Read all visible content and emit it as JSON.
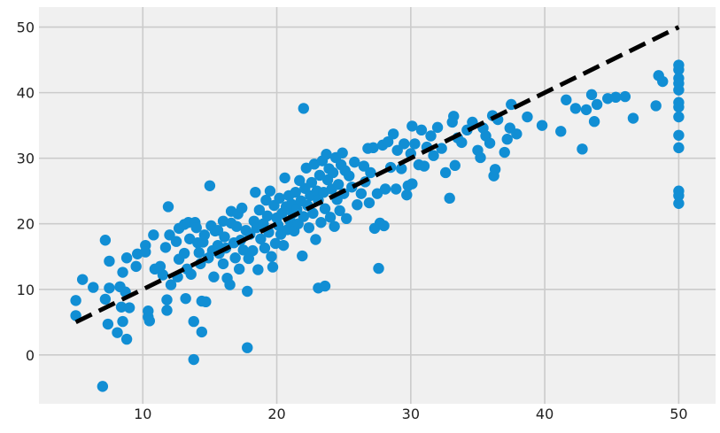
{
  "chart_data": {
    "type": "scatter",
    "title": "",
    "xlabel": "",
    "ylabel": "",
    "xlim": [
      2.25,
      52.75
    ],
    "ylim": [
      -7.45,
      53.05
    ],
    "xticks": [
      10,
      20,
      30,
      40,
      50
    ],
    "yticks": [
      0,
      10,
      20,
      30,
      40,
      50
    ],
    "xtick_labels": [
      "10",
      "20",
      "30",
      "40",
      "50"
    ],
    "ytick_labels": [
      "0",
      "10",
      "20",
      "30",
      "40",
      "50"
    ],
    "grid": true,
    "style": "fivethirtyeight",
    "colors": {
      "points": "#118ed4",
      "line": "#000000",
      "background": "#f0f0f0",
      "grid": "#cbcbcb"
    },
    "reference_line": {
      "x": [
        5,
        50
      ],
      "y": [
        5,
        50
      ],
      "style": "dashed"
    },
    "series": [
      {
        "points": [
          [
            5.0,
            8.3
          ],
          [
            5.0,
            6.0
          ],
          [
            5.5,
            11.5
          ],
          [
            6.3,
            10.3
          ],
          [
            7.0,
            -4.8
          ],
          [
            7.2,
            17.5
          ],
          [
            7.2,
            8.5
          ],
          [
            7.5,
            14.3
          ],
          [
            7.5,
            10.2
          ],
          [
            7.4,
            4.7
          ],
          [
            8.1,
            3.4
          ],
          [
            8.3,
            10.4
          ],
          [
            8.4,
            7.3
          ],
          [
            8.5,
            12.6
          ],
          [
            8.5,
            5.1
          ],
          [
            8.7,
            9.6
          ],
          [
            8.8,
            14.8
          ],
          [
            8.8,
            2.4
          ],
          [
            9.0,
            7.2
          ],
          [
            9.5,
            13.5
          ],
          [
            9.6,
            15.4
          ],
          [
            10.2,
            16.7
          ],
          [
            10.2,
            15.7
          ],
          [
            10.4,
            5.8
          ],
          [
            10.4,
            6.7
          ],
          [
            10.5,
            5.2
          ],
          [
            10.8,
            18.3
          ],
          [
            10.9,
            13.1
          ],
          [
            11.3,
            13.5
          ],
          [
            11.5,
            12.2
          ],
          [
            11.7,
            16.4
          ],
          [
            11.8,
            8.4
          ],
          [
            11.8,
            6.8
          ],
          [
            11.9,
            22.6
          ],
          [
            12.0,
            18.3
          ],
          [
            12.1,
            10.7
          ],
          [
            12.5,
            17.3
          ],
          [
            12.6,
            11.9
          ],
          [
            12.7,
            19.3
          ],
          [
            12.7,
            14.6
          ],
          [
            13.1,
            15.5
          ],
          [
            13.1,
            19.9
          ],
          [
            13.2,
            8.6
          ],
          [
            13.3,
            13.1
          ],
          [
            13.4,
            20.2
          ],
          [
            13.5,
            17.7
          ],
          [
            13.6,
            12.3
          ],
          [
            13.8,
            5.1
          ],
          [
            13.8,
            -0.7
          ],
          [
            13.9,
            20.2
          ],
          [
            14.0,
            19.4
          ],
          [
            14.1,
            17.1
          ],
          [
            14.2,
            15.6
          ],
          [
            14.3,
            13.9
          ],
          [
            14.4,
            3.5
          ],
          [
            14.4,
            8.2
          ],
          [
            14.5,
            17.2
          ],
          [
            14.6,
            18.3
          ],
          [
            14.7,
            8.1
          ],
          [
            14.9,
            14.8
          ],
          [
            15.0,
            25.8
          ],
          [
            15.1,
            19.7
          ],
          [
            15.2,
            15.9
          ],
          [
            15.3,
            11.9
          ],
          [
            15.4,
            18.9
          ],
          [
            15.6,
            16.7
          ],
          [
            15.6,
            19.0
          ],
          [
            15.7,
            15.5
          ],
          [
            16.0,
            20.4
          ],
          [
            16.0,
            13.9
          ],
          [
            16.1,
            18.0
          ],
          [
            16.2,
            16.3
          ],
          [
            16.3,
            11.7
          ],
          [
            16.5,
            10.7
          ],
          [
            16.6,
            20.1
          ],
          [
            16.6,
            21.9
          ],
          [
            16.8,
            17.1
          ],
          [
            16.9,
            14.8
          ],
          [
            17.0,
            19.6
          ],
          [
            17.1,
            21.5
          ],
          [
            17.2,
            13.1
          ],
          [
            17.3,
            17.5
          ],
          [
            17.4,
            22.4
          ],
          [
            17.5,
            16.0
          ],
          [
            17.7,
            19.0
          ],
          [
            17.8,
            9.7
          ],
          [
            17.8,
            1.1
          ],
          [
            17.9,
            14.7
          ],
          [
            18.0,
            18.4
          ],
          [
            18.2,
            15.9
          ],
          [
            18.3,
            20.4
          ],
          [
            18.4,
            24.8
          ],
          [
            18.5,
            19.4
          ],
          [
            18.6,
            13.0
          ],
          [
            18.7,
            22.1
          ],
          [
            18.8,
            17.7
          ],
          [
            19.0,
            20.0
          ],
          [
            19.1,
            16.3
          ],
          [
            19.2,
            23.6
          ],
          [
            19.3,
            21.2
          ],
          [
            19.4,
            18.7
          ],
          [
            19.5,
            25.0
          ],
          [
            19.6,
            15.0
          ],
          [
            19.7,
            13.4
          ],
          [
            19.8,
            22.8
          ],
          [
            19.9,
            17.0
          ],
          [
            20.0,
            20.9
          ],
          [
            20.1,
            19.8
          ],
          [
            20.2,
            23.9
          ],
          [
            20.3,
            18.4
          ],
          [
            20.4,
            21.6
          ],
          [
            20.5,
            16.7
          ],
          [
            20.6,
            27.0
          ],
          [
            20.7,
            22.6
          ],
          [
            20.8,
            19.1
          ],
          [
            20.9,
            24.3
          ],
          [
            21.0,
            20.4
          ],
          [
            21.1,
            23.0
          ],
          [
            21.2,
            21.6
          ],
          [
            21.3,
            18.9
          ],
          [
            21.4,
            24.8
          ],
          [
            21.5,
            22.2
          ],
          [
            21.6,
            20.0
          ],
          [
            21.7,
            26.6
          ],
          [
            21.8,
            23.5
          ],
          [
            21.9,
            15.1
          ],
          [
            22.0,
            37.6
          ],
          [
            22.0,
            21.1
          ],
          [
            22.1,
            25.4
          ],
          [
            22.2,
            28.5
          ],
          [
            22.3,
            22.8
          ],
          [
            22.4,
            19.4
          ],
          [
            22.5,
            24.3
          ],
          [
            22.6,
            26.3
          ],
          [
            22.7,
            21.6
          ],
          [
            22.8,
            29.1
          ],
          [
            22.9,
            17.6
          ],
          [
            23.0,
            25.0
          ],
          [
            23.1,
            10.2
          ],
          [
            23.1,
            23.6
          ],
          [
            23.2,
            27.4
          ],
          [
            23.3,
            20.2
          ],
          [
            23.4,
            29.6
          ],
          [
            23.5,
            24.8
          ],
          [
            23.6,
            10.5
          ],
          [
            23.6,
            22.3
          ],
          [
            23.7,
            30.6
          ],
          [
            23.8,
            26.7
          ],
          [
            23.9,
            28.4
          ],
          [
            24.0,
            21.0
          ],
          [
            24.1,
            25.3
          ],
          [
            24.2,
            27.8
          ],
          [
            24.3,
            19.6
          ],
          [
            24.4,
            30.1
          ],
          [
            24.5,
            23.7
          ],
          [
            24.6,
            26.0
          ],
          [
            24.7,
            22.0
          ],
          [
            24.8,
            29.0
          ],
          [
            24.9,
            30.8
          ],
          [
            25.0,
            24.6
          ],
          [
            25.1,
            28.1
          ],
          [
            25.2,
            20.8
          ],
          [
            25.4,
            27.3
          ],
          [
            25.6,
            25.6
          ],
          [
            25.8,
            29.4
          ],
          [
            26.0,
            22.9
          ],
          [
            26.3,
            24.6
          ],
          [
            26.5,
            28.8
          ],
          [
            26.6,
            26.4
          ],
          [
            26.8,
            31.5
          ],
          [
            26.9,
            23.2
          ],
          [
            27.0,
            27.8
          ],
          [
            27.2,
            31.6
          ],
          [
            27.3,
            19.3
          ],
          [
            27.5,
            24.6
          ],
          [
            27.6,
            13.2
          ],
          [
            27.7,
            20.1
          ],
          [
            27.9,
            32.0
          ],
          [
            28.0,
            19.7
          ],
          [
            28.1,
            25.3
          ],
          [
            28.3,
            32.5
          ],
          [
            28.5,
            28.6
          ],
          [
            28.7,
            33.7
          ],
          [
            28.9,
            25.3
          ],
          [
            29.0,
            31.2
          ],
          [
            29.3,
            28.4
          ],
          [
            29.5,
            32.2
          ],
          [
            29.7,
            24.4
          ],
          [
            29.8,
            25.8
          ],
          [
            30.0,
            30.7
          ],
          [
            30.1,
            26.1
          ],
          [
            30.1,
            34.9
          ],
          [
            30.3,
            32.2
          ],
          [
            30.6,
            29.0
          ],
          [
            30.8,
            34.3
          ],
          [
            31.0,
            28.8
          ],
          [
            31.2,
            31.7
          ],
          [
            31.5,
            33.4
          ],
          [
            31.7,
            30.4
          ],
          [
            32.0,
            34.7
          ],
          [
            32.3,
            31.5
          ],
          [
            32.6,
            27.8
          ],
          [
            32.9,
            23.9
          ],
          [
            33.1,
            35.5
          ],
          [
            33.2,
            36.4
          ],
          [
            33.3,
            28.9
          ],
          [
            33.5,
            33.1
          ],
          [
            33.8,
            32.4
          ],
          [
            34.2,
            34.3
          ],
          [
            34.6,
            35.5
          ],
          [
            35.0,
            31.2
          ],
          [
            35.2,
            30.1
          ],
          [
            35.4,
            34.6
          ],
          [
            35.6,
            33.4
          ],
          [
            35.9,
            32.3
          ],
          [
            36.1,
            36.5
          ],
          [
            36.2,
            27.3
          ],
          [
            36.3,
            28.3
          ],
          [
            36.5,
            35.9
          ],
          [
            37.0,
            30.9
          ],
          [
            37.2,
            32.9
          ],
          [
            37.4,
            34.6
          ],
          [
            37.5,
            38.2
          ],
          [
            37.9,
            33.7
          ],
          [
            38.7,
            36.3
          ],
          [
            39.8,
            35.0
          ],
          [
            41.2,
            34.1
          ],
          [
            41.6,
            38.9
          ],
          [
            42.3,
            37.6
          ],
          [
            42.8,
            31.4
          ],
          [
            43.1,
            37.4
          ],
          [
            43.5,
            39.7
          ],
          [
            43.7,
            35.6
          ],
          [
            43.9,
            38.2
          ],
          [
            44.7,
            39.1
          ],
          [
            45.3,
            39.3
          ],
          [
            46.0,
            39.4
          ],
          [
            46.6,
            36.1
          ],
          [
            48.3,
            38.0
          ],
          [
            48.5,
            42.6
          ],
          [
            48.8,
            41.7
          ],
          [
            50.0,
            44.2
          ],
          [
            50.0,
            43.5
          ],
          [
            50.0,
            42.2
          ],
          [
            50.0,
            41.4
          ],
          [
            50.0,
            40.4
          ],
          [
            50.0,
            38.5
          ],
          [
            50.0,
            37.8
          ],
          [
            50.0,
            36.3
          ],
          [
            50.0,
            33.5
          ],
          [
            50.0,
            31.6
          ],
          [
            50.0,
            25.0
          ],
          [
            50.0,
            24.3
          ],
          [
            50.0,
            23.1
          ]
        ]
      }
    ]
  }
}
